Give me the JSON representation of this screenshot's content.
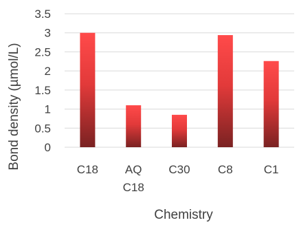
{
  "chart_data": {
    "type": "bar",
    "title": "",
    "xlabel": "Chemistry",
    "ylabel": "Bond density (µmol/L)",
    "categories": [
      [
        "C18"
      ],
      [
        "AQ",
        "C18"
      ],
      [
        "C30"
      ],
      [
        "C8"
      ],
      [
        "C1"
      ]
    ],
    "values": [
      3.0,
      1.1,
      0.85,
      2.94,
      2.26
    ],
    "ylim": [
      0,
      3.5
    ],
    "yticks": [
      0,
      0.5,
      1,
      1.5,
      2,
      2.5,
      3,
      3.5
    ],
    "ytick_labels": [
      "0",
      "0.5",
      "1",
      "1.5",
      "2",
      "2.5",
      "3",
      "3.5"
    ],
    "grid": true,
    "legend": "none",
    "bar_color_top": "#ff4a4a",
    "bar_color_bottom": "#7a2222",
    "grid_color": "#d9d9d9"
  }
}
